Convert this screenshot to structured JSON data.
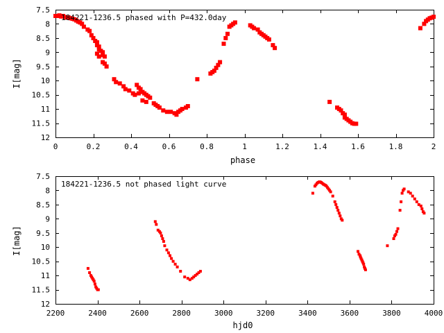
{
  "chart_data": [
    {
      "type": "scatter",
      "title": "184221-1236.5 phased with P=432.0day",
      "xlabel": "phase",
      "ylabel": "I[mag]",
      "xlim": [
        0,
        2
      ],
      "ylim": [
        7.5,
        12
      ],
      "y_inverted": true,
      "x_ticks": [
        "0",
        "0.2",
        "0.4",
        "0.6",
        "0.8",
        "1",
        "1.2",
        "1.4",
        "1.6",
        "1.8",
        "2"
      ],
      "y_ticks": [
        "7.5",
        "8",
        "8.5",
        "9",
        "9.5",
        "10",
        "10.5",
        "11",
        "11.5",
        "12"
      ],
      "marker": "filled-square",
      "color": "#ff0000",
      "grid": false,
      "series": [
        {
          "x": [
            0.0,
            0.01,
            0.02,
            0.03,
            0.04,
            0.05,
            0.06,
            0.07,
            0.08,
            0.09,
            0.1,
            0.11,
            0.12,
            0.13,
            0.14,
            0.15,
            0.17,
            0.18,
            0.19,
            0.2,
            0.21,
            0.22,
            0.22,
            0.23,
            0.23,
            0.24,
            0.25,
            0.25,
            0.26,
            0.22,
            0.23,
            0.25,
            0.26,
            0.27,
            0.31,
            0.32,
            0.34,
            0.36,
            0.37,
            0.39,
            0.41,
            0.42,
            0.43,
            0.44,
            0.45,
            0.46,
            0.47,
            0.48,
            0.49,
            0.5,
            0.44,
            0.46,
            0.48,
            0.52,
            0.53,
            0.54,
            0.55,
            0.57,
            0.59,
            0.61,
            0.63,
            0.64,
            0.65,
            0.66,
            0.67,
            0.69,
            0.7,
            0.75,
            0.82,
            0.83,
            0.84,
            0.85,
            0.86,
            0.87,
            0.89,
            0.9,
            0.91,
            0.92,
            0.93,
            0.94,
            0.95,
            1.03,
            1.04,
            1.05,
            1.07,
            1.08,
            1.09,
            1.1,
            1.11,
            1.12,
            1.13,
            1.15,
            1.16,
            1.45,
            1.49,
            1.5,
            1.51,
            1.52,
            1.53,
            1.53,
            1.54,
            1.55,
            1.56,
            1.57,
            1.58,
            1.59,
            1.93,
            1.95,
            1.96,
            1.97,
            1.98,
            1.99,
            2.0
          ],
          "y": [
            7.72,
            7.72,
            7.7,
            7.74,
            7.72,
            7.76,
            7.78,
            7.78,
            7.8,
            7.82,
            7.84,
            7.88,
            7.92,
            7.95,
            8.0,
            8.1,
            8.2,
            8.25,
            8.4,
            8.5,
            8.6,
            8.65,
            8.75,
            8.8,
            8.9,
            8.95,
            9.0,
            9.1,
            9.15,
            9.05,
            9.15,
            9.35,
            9.4,
            9.5,
            9.95,
            10.05,
            10.1,
            10.2,
            10.3,
            10.35,
            10.45,
            10.5,
            10.15,
            10.25,
            10.3,
            10.4,
            10.45,
            10.5,
            10.55,
            10.6,
            10.45,
            10.7,
            10.75,
            10.8,
            10.85,
            10.9,
            10.95,
            11.05,
            11.1,
            11.1,
            11.15,
            11.2,
            11.1,
            11.05,
            11.0,
            10.95,
            10.9,
            9.95,
            9.75,
            9.7,
            9.65,
            9.55,
            9.45,
            9.35,
            8.7,
            8.5,
            8.35,
            8.1,
            8.05,
            8.0,
            7.95,
            8.05,
            8.1,
            8.15,
            8.2,
            8.3,
            8.35,
            8.4,
            8.45,
            8.5,
            8.55,
            8.75,
            8.85,
            10.75,
            10.95,
            11.0,
            11.05,
            11.15,
            11.2,
            11.3,
            11.35,
            11.4,
            11.45,
            11.5,
            11.52,
            11.52,
            8.15,
            8.0,
            7.9,
            7.85,
            7.8,
            7.78,
            7.75
          ]
        }
      ]
    },
    {
      "type": "scatter",
      "title": "184221-1236.5 not phased light curve",
      "xlabel": "hjd0",
      "ylabel": "I[mag]",
      "xlim": [
        2200,
        4000
      ],
      "ylim": [
        7.5,
        12
      ],
      "y_inverted": true,
      "x_ticks": [
        "2200",
        "2400",
        "2600",
        "2800",
        "3000",
        "3200",
        "3400",
        "3600",
        "3800",
        "4000"
      ],
      "y_ticks": [
        "7.5",
        "8",
        "8.5",
        "9",
        "9.5",
        "10",
        "10.5",
        "11",
        "11.5",
        "12"
      ],
      "marker": "filled-square-small",
      "color": "#ff0000",
      "grid": false,
      "series": [
        {
          "x": [
            2355,
            2362,
            2368,
            2372,
            2376,
            2380,
            2384,
            2388,
            2392,
            2396,
            2400,
            2404,
            2675,
            2680,
            2688,
            2695,
            2700,
            2705,
            2710,
            2715,
            2720,
            2730,
            2738,
            2745,
            2752,
            2760,
            2770,
            2780,
            2795,
            2815,
            2830,
            2840,
            2850,
            2858,
            2866,
            2874,
            2882,
            2890,
            3425,
            3435,
            3440,
            3445,
            3450,
            3455,
            3460,
            3465,
            3470,
            3475,
            3480,
            3485,
            3490,
            3495,
            3500,
            3505,
            3510,
            3520,
            3530,
            3535,
            3540,
            3545,
            3550,
            3555,
            3560,
            3565,
            3640,
            3645,
            3650,
            3652,
            3655,
            3658,
            3661,
            3664,
            3667,
            3670,
            3673,
            3676,
            3780,
            3810,
            3815,
            3820,
            3825,
            3830,
            3840,
            3845,
            3850,
            3855,
            3860,
            3880,
            3890,
            3900,
            3910,
            3920,
            3930,
            3940,
            3945,
            3950,
            3955
          ],
          "y": [
            10.75,
            10.9,
            11.0,
            11.05,
            11.1,
            11.15,
            11.2,
            11.3,
            11.4,
            11.45,
            11.5,
            11.5,
            9.1,
            9.2,
            9.4,
            9.45,
            9.5,
            9.6,
            9.7,
            9.8,
            9.95,
            10.1,
            10.2,
            10.3,
            10.4,
            10.5,
            10.6,
            10.7,
            10.85,
            11.05,
            11.1,
            11.15,
            11.1,
            11.05,
            11.0,
            10.95,
            10.9,
            10.85,
            8.1,
            7.85,
            7.8,
            7.75,
            7.72,
            7.7,
            7.7,
            7.72,
            7.75,
            7.78,
            7.8,
            7.82,
            7.85,
            7.9,
            7.95,
            8.0,
            8.05,
            8.2,
            8.4,
            8.5,
            8.6,
            8.7,
            8.8,
            8.9,
            9.0,
            9.05,
            10.15,
            10.25,
            10.3,
            10.35,
            10.4,
            10.45,
            10.5,
            10.55,
            10.6,
            10.7,
            10.75,
            10.8,
            9.95,
            9.7,
            9.6,
            9.55,
            9.45,
            9.35,
            8.7,
            8.4,
            8.1,
            8.0,
            7.95,
            8.05,
            8.1,
            8.2,
            8.3,
            8.4,
            8.5,
            8.55,
            8.65,
            8.75,
            8.8
          ]
        }
      ]
    }
  ]
}
